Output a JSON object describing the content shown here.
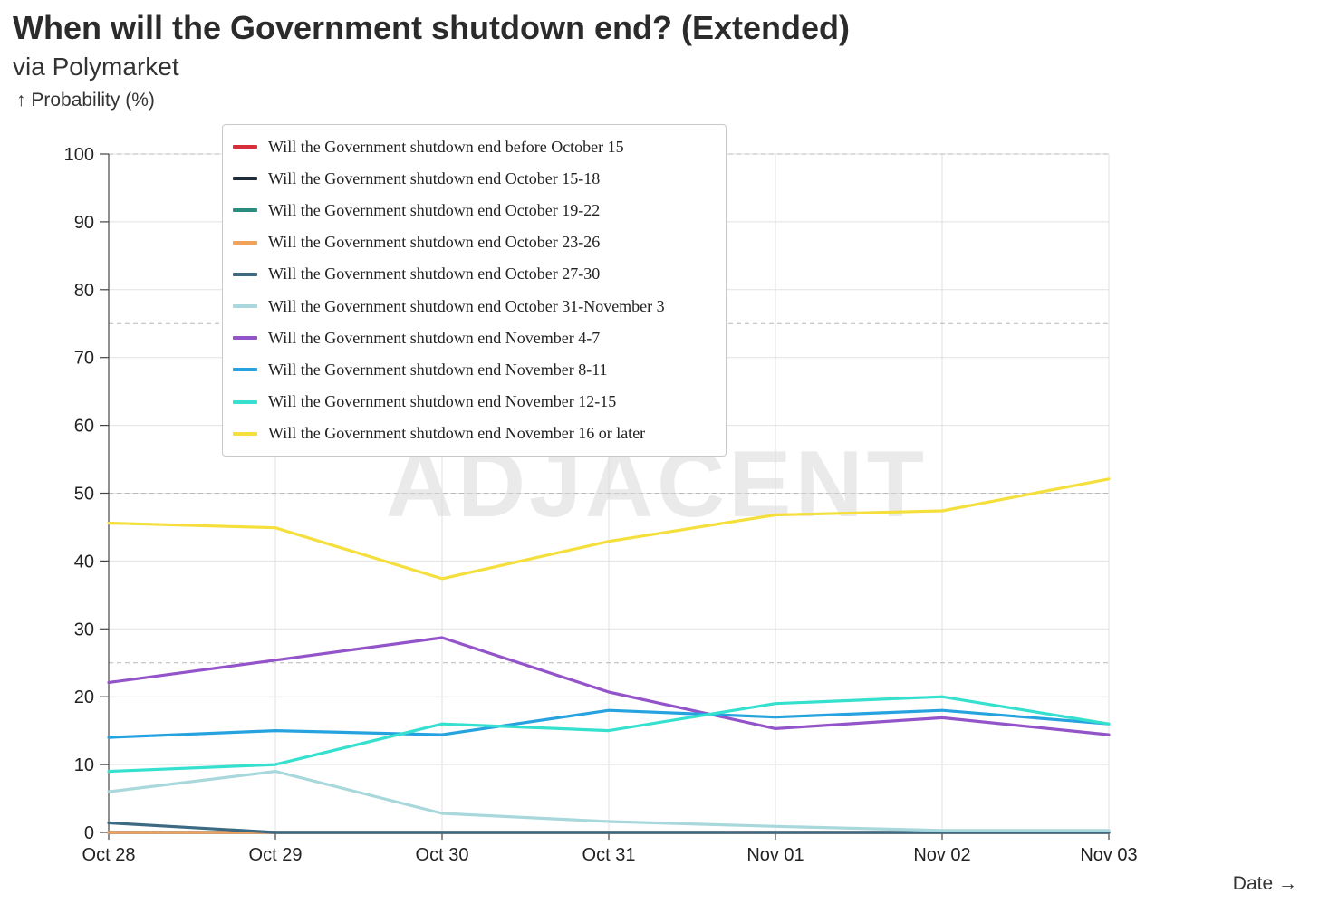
{
  "header": {
    "title": "When will the Government shutdown end? (Extended)",
    "subtitle": "via Polymarket",
    "y_axis_label": "↑ Probability (%)",
    "x_axis_label": "Date →"
  },
  "watermark": "ADJACENT",
  "chart_data": {
    "type": "line",
    "title": "When will the Government shutdown end? (Extended)",
    "subtitle": "via Polymarket",
    "xlabel": "Date →",
    "ylabel": "↑ Probability (%)",
    "x": [
      "Oct 28",
      "Oct 29",
      "Oct 30",
      "Oct 31",
      "Nov 01",
      "Nov 02",
      "Nov 03"
    ],
    "ylim": [
      0,
      100
    ],
    "yticks": [
      0,
      10,
      20,
      30,
      40,
      50,
      60,
      70,
      80,
      90,
      100
    ],
    "grid": true,
    "dashed_reference_lines": [
      25,
      50,
      75,
      100
    ],
    "legend_position": "top-left",
    "series": [
      {
        "name": "Will the Government shutdown end before October 15",
        "color": "#d62f3a",
        "values": [
          0,
          0,
          0,
          0,
          0,
          0,
          0
        ]
      },
      {
        "name": "Will the Government shutdown end October 15-18",
        "color": "#1d2b3a",
        "values": [
          0,
          0,
          0,
          0,
          0,
          0,
          0
        ]
      },
      {
        "name": "Will the Government shutdown end October 19-22",
        "color": "#2a8c7e",
        "values": [
          0,
          0,
          0,
          0,
          0,
          0,
          0
        ]
      },
      {
        "name": "Will the Government shutdown end October 23-26",
        "color": "#f0a25a",
        "values": [
          0,
          0,
          0,
          0,
          0,
          0,
          0
        ]
      },
      {
        "name": "Will the Government shutdown end October 27-30",
        "color": "#3b6a82",
        "values": [
          1.4,
          0,
          0,
          0,
          0,
          0,
          0
        ]
      },
      {
        "name": "Will the Government shutdown end October 31-November 3",
        "color": "#a8d8dc",
        "values": [
          6,
          9,
          2.8,
          1.6,
          0.9,
          0.3,
          0.3
        ]
      },
      {
        "name": "Will the Government shutdown end November 4-7",
        "color": "#9454c9",
        "values": [
          22.1,
          25.4,
          28.7,
          20.7,
          15.3,
          16.9,
          14.4
        ]
      },
      {
        "name": "Will the Government shutdown end November 8-11",
        "color": "#26a3df",
        "values": [
          14,
          15,
          14.4,
          18,
          17,
          18,
          16
        ]
      },
      {
        "name": "Will the Government shutdown end November 12-15",
        "color": "#35e0cf",
        "values": [
          9,
          10,
          16,
          15,
          19,
          20,
          16
        ]
      },
      {
        "name": "Will the Government shutdown end November 16 or later",
        "color": "#f5df3c",
        "values": [
          45.6,
          44.9,
          37.4,
          42.9,
          46.8,
          47.4,
          52.1
        ]
      }
    ]
  }
}
